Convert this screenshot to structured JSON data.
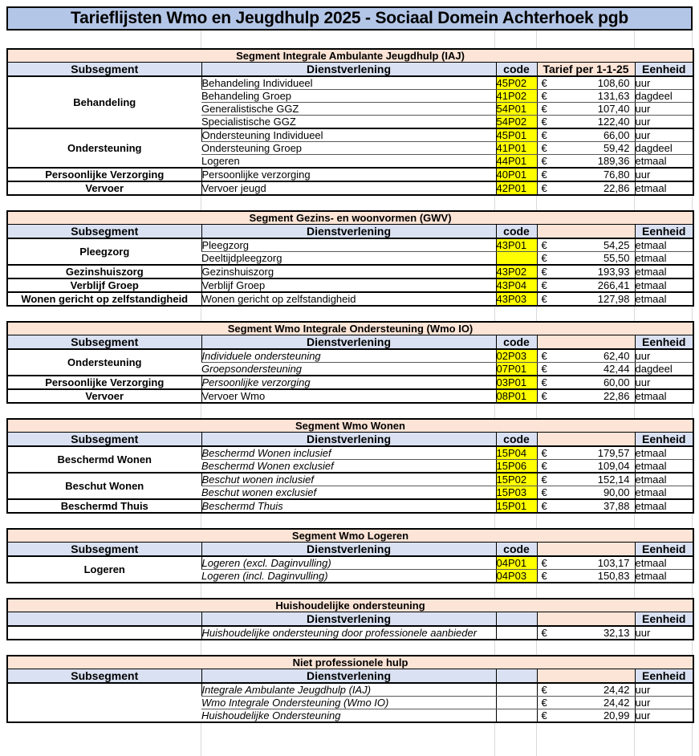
{
  "page": {
    "title": "Tarieflijsten Wmo en Jeugdhulp 2025 - Sociaal Domein Achterhoek pgb"
  },
  "colors": {
    "title_bg": "#b4c6e7",
    "header_bg": "#d9e1f2",
    "segment_bg": "#fce4d6",
    "code_bg": "#ffff00",
    "border_dark": "#000000",
    "border_light": "#595959",
    "gridline": "#d9d9d9"
  },
  "currency": "€",
  "tables": [
    {
      "id": "iaj",
      "segment_title": "Segment Integrale Ambulante Jeugdhulp (IAJ)",
      "headers": [
        "Subsegment",
        "Dienstverlening",
        "code",
        "Tarief per 1-1-25",
        "Eenheid"
      ],
      "groups": [
        {
          "label": "Behandeling",
          "rows": [
            {
              "dienstverlening": "Behandeling Individueel",
              "italic": false,
              "code": "45P02",
              "code_yellow": true,
              "tarief": "108,60",
              "eenheid": "uur"
            },
            {
              "dienstverlening": "Behandeling Groep",
              "italic": false,
              "code": "41P02",
              "code_yellow": true,
              "tarief": "131,63",
              "eenheid": "dagdeel"
            },
            {
              "dienstverlening": "Generalistische GGZ",
              "italic": false,
              "code": "54P01",
              "code_yellow": true,
              "tarief": "107,40",
              "eenheid": "uur"
            },
            {
              "dienstverlening": "Specialistische GGZ",
              "italic": false,
              "code": "54P02",
              "code_yellow": true,
              "tarief": "122,40",
              "eenheid": "uur"
            }
          ]
        },
        {
          "label": "Ondersteuning",
          "rows": [
            {
              "dienstverlening": "Ondersteuning Individueel",
              "italic": false,
              "code": "45P01",
              "code_yellow": true,
              "tarief": "66,00",
              "eenheid": "uur"
            },
            {
              "dienstverlening": "Ondersteuning Groep",
              "italic": false,
              "code": "41P01",
              "code_yellow": true,
              "tarief": "59,42",
              "eenheid": "dagdeel"
            },
            {
              "dienstverlening": "Logeren",
              "italic": false,
              "code": "44P01",
              "code_yellow": true,
              "tarief": "189,36",
              "eenheid": "etmaal"
            }
          ]
        },
        {
          "label": "Persoonlijke Verzorging",
          "rows": [
            {
              "dienstverlening": "Persoonlijke verzorging",
              "italic": false,
              "code": "40P01",
              "code_yellow": true,
              "tarief": "76,80",
              "eenheid": "uur"
            }
          ]
        },
        {
          "label": "Vervoer",
          "rows": [
            {
              "dienstverlening": "Vervoer jeugd",
              "italic": false,
              "code": "42P01",
              "code_yellow": true,
              "tarief": "22,86",
              "eenheid": "etmaal"
            }
          ]
        }
      ]
    },
    {
      "id": "gwv",
      "segment_title": "Segment Gezins- en woonvormen (GWV)",
      "headers": [
        "Subsegment",
        "Dienstverlening",
        "code",
        "",
        "Eenheid"
      ],
      "groups": [
        {
          "label": "Pleegzorg",
          "rows": [
            {
              "dienstverlening": "Pleegzorg",
              "italic": false,
              "code": "43P01",
              "code_yellow": true,
              "tarief": "54,25",
              "eenheid": "etmaal"
            },
            {
              "dienstverlening": "Deeltijdpleegzorg",
              "italic": false,
              "code": "",
              "code_yellow": true,
              "tarief": "55,50",
              "eenheid": "etmaal"
            }
          ]
        },
        {
          "label": "Gezinshuiszorg",
          "rows": [
            {
              "dienstverlening": "Gezinshuiszorg",
              "italic": false,
              "code": "43P02",
              "code_yellow": true,
              "tarief": "193,93",
              "eenheid": "etmaal"
            }
          ]
        },
        {
          "label": "Verblijf Groep",
          "rows": [
            {
              "dienstverlening": "Verblijf Groep",
              "italic": false,
              "code": "43P04",
              "code_yellow": true,
              "tarief": "266,41",
              "eenheid": "etmaal"
            }
          ]
        },
        {
          "label": "Wonen gericht op zelfstandigheid",
          "rows": [
            {
              "dienstverlening": "Wonen gericht op zelfstandigheid",
              "italic": false,
              "code": "43P03",
              "code_yellow": true,
              "tarief": "127,98",
              "eenheid": "etmaal"
            }
          ]
        }
      ]
    },
    {
      "id": "wmo-io",
      "segment_title": "Segment Wmo Integrale Ondersteuning (Wmo IO)",
      "headers": [
        "Subsegment",
        "Dienstverlening",
        "code",
        "",
        "Eenheid"
      ],
      "groups": [
        {
          "label": "Ondersteuning",
          "rows": [
            {
              "dienstverlening": "Individuele ondersteuning",
              "italic": true,
              "code": "02P03",
              "code_yellow": true,
              "tarief": "62,40",
              "eenheid": "uur"
            },
            {
              "dienstverlening": "Groepsondersteuning",
              "italic": true,
              "code": "07P01",
              "code_yellow": true,
              "tarief": "42,44",
              "eenheid": "dagdeel"
            }
          ]
        },
        {
          "label": "Persoonlijke Verzorging",
          "rows": [
            {
              "dienstverlening": "Persoonlijke verzorging",
              "italic": true,
              "code": "03P01",
              "code_yellow": true,
              "tarief": "60,00",
              "eenheid": "uur"
            }
          ]
        },
        {
          "label": "Vervoer",
          "rows": [
            {
              "dienstverlening": "Vervoer Wmo",
              "italic": false,
              "code": "08P01",
              "code_yellow": true,
              "tarief": "22,86",
              "eenheid": "etmaal"
            }
          ]
        }
      ]
    },
    {
      "id": "wmo-wonen",
      "segment_title": "Segment Wmo Wonen",
      "headers": [
        "Subsegment",
        "Dienstverlening",
        "code",
        "",
        "Eenheid"
      ],
      "groups": [
        {
          "label": "Beschermd Wonen",
          "rows": [
            {
              "dienstverlening": "Beschermd Wonen inclusief",
              "italic": true,
              "code": "15P04",
              "code_yellow": true,
              "tarief": "179,57",
              "eenheid": "etmaal"
            },
            {
              "dienstverlening": "Beschermd Wonen exclusief",
              "italic": true,
              "code": "15P06",
              "code_yellow": true,
              "tarief": "109,04",
              "eenheid": "etmaal"
            }
          ]
        },
        {
          "label": "Beschut Wonen",
          "rows": [
            {
              "dienstverlening": "Beschut wonen inclusief",
              "italic": true,
              "code": "15P02",
              "code_yellow": true,
              "tarief": "152,14",
              "eenheid": "etmaal"
            },
            {
              "dienstverlening": "Beschut wonen exclusief",
              "italic": true,
              "code": "15P03",
              "code_yellow": true,
              "tarief": "90,00",
              "eenheid": "etmaal"
            }
          ]
        },
        {
          "label": "Beschermd Thuis",
          "rows": [
            {
              "dienstverlening": "Beschermd Thuis",
              "italic": true,
              "code": "15P01",
              "code_yellow": true,
              "tarief": "37,88",
              "eenheid": "etmaal"
            }
          ]
        }
      ]
    },
    {
      "id": "wmo-logeren",
      "segment_title": "Segment Wmo Logeren",
      "headers": [
        "Subsegment",
        "Dienstverlening",
        "code",
        "",
        "Eenheid"
      ],
      "groups": [
        {
          "label": "Logeren",
          "rows": [
            {
              "dienstverlening": "Logeren (excl. Daginvulling)",
              "italic": true,
              "code": "04P01",
              "code_yellow": true,
              "tarief": "103,17",
              "eenheid": "etmaal"
            },
            {
              "dienstverlening": "Logeren (incl. Daginvulling)",
              "italic": true,
              "code": "04P03",
              "code_yellow": true,
              "tarief": "150,83",
              "eenheid": "etmaal"
            }
          ]
        }
      ]
    },
    {
      "id": "huishoudelijke-ondersteuning",
      "segment_title": "Huishoudelijke ondersteuning",
      "headers": [
        "",
        "Dienstverlening",
        "",
        "",
        "Eenheid"
      ],
      "groups": [
        {
          "label": "",
          "rows": [
            {
              "dienstverlening": "Huishoudelijke ondersteuning door professionele aanbieder",
              "italic": true,
              "code": "",
              "code_yellow": false,
              "tarief": "32,13",
              "eenheid": "uur"
            }
          ]
        }
      ]
    },
    {
      "id": "niet-professionele-hulp",
      "segment_title": "Niet professionele hulp",
      "headers": [
        "Subsegment",
        "Dienstverlening",
        "",
        "",
        "Eenheid"
      ],
      "groups": [
        {
          "label": "",
          "rows": [
            {
              "dienstverlening": "Integrale Ambulante Jeugdhulp (IAJ)",
              "italic": true,
              "code": "",
              "code_yellow": false,
              "tarief": "24,42",
              "eenheid": "uur"
            },
            {
              "dienstverlening": "Wmo Integrale Ondersteuning (Wmo IO)",
              "italic": true,
              "code": "",
              "code_yellow": false,
              "tarief": "24,42",
              "eenheid": "uur"
            },
            {
              "dienstverlening": "Huishoudelijke Ondersteuning",
              "italic": true,
              "code": "",
              "code_yellow": false,
              "tarief": "20,99",
              "eenheid": "uur"
            }
          ]
        }
      ]
    }
  ]
}
